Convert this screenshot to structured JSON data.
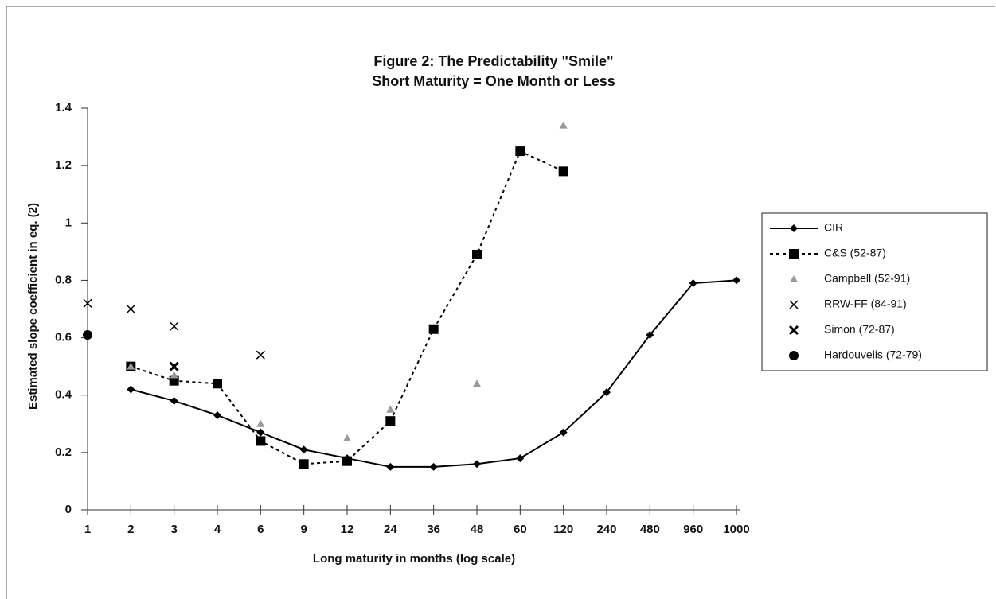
{
  "chart_data": {
    "type": "line",
    "title": "Figure 2:  The Predictability \"Smile\"",
    "subtitle": "Short Maturity = One Month or Less",
    "x_label": "Long maturity in months (log scale)",
    "y_label": "Estimated slope coefficient in eq. (2)",
    "categories": [
      "1",
      "2",
      "3",
      "4",
      "6",
      "9",
      "12",
      "24",
      "36",
      "48",
      "60",
      "120",
      "240",
      "480",
      "960",
      "1000"
    ],
    "ylim": [
      0,
      1.4
    ],
    "yticks": [
      0,
      0.2,
      0.4,
      0.6,
      0.8,
      1,
      1.2,
      1.4
    ],
    "legend": "right",
    "series": [
      {
        "name": "CIR",
        "color": "#000000",
        "marker": "diamond",
        "line": "solid",
        "values": [
          null,
          0.42,
          0.38,
          0.33,
          0.27,
          0.21,
          0.18,
          0.15,
          0.15,
          0.16,
          0.18,
          0.27,
          0.41,
          0.61,
          0.79,
          0.8
        ]
      },
      {
        "name": "C&S (52-87)",
        "color": "#000000",
        "marker": "square",
        "line": "dashed",
        "values": [
          null,
          0.5,
          0.45,
          0.44,
          0.24,
          0.16,
          0.17,
          0.31,
          0.63,
          0.89,
          1.25,
          1.18,
          null,
          null,
          null,
          null
        ]
      },
      {
        "name": "Campbell (52-91)",
        "color": "#999999",
        "marker": "triangle",
        "line": "none",
        "values": [
          null,
          0.5,
          0.47,
          null,
          0.3,
          null,
          0.25,
          0.35,
          null,
          0.44,
          null,
          1.34,
          null,
          null,
          null,
          null
        ]
      },
      {
        "name": "RRW-FF (84-91)",
        "color": "#000000",
        "marker": "x",
        "line": "none",
        "values": [
          0.72,
          0.7,
          0.64,
          null,
          0.54,
          null,
          null,
          null,
          null,
          null,
          null,
          null,
          null,
          null,
          null,
          null
        ]
      },
      {
        "name": "Simon (72-87)",
        "color": "#000000",
        "marker": "boldx",
        "line": "none",
        "values": [
          null,
          null,
          0.5,
          null,
          null,
          null,
          null,
          null,
          null,
          null,
          null,
          null,
          null,
          null,
          null,
          null
        ]
      },
      {
        "name": "Hardouvelis (72-79)",
        "color": "#000000",
        "marker": "circle",
        "line": "none",
        "values": [
          0.61,
          null,
          null,
          null,
          null,
          null,
          null,
          null,
          null,
          null,
          null,
          null,
          null,
          null,
          null,
          null
        ]
      }
    ]
  }
}
